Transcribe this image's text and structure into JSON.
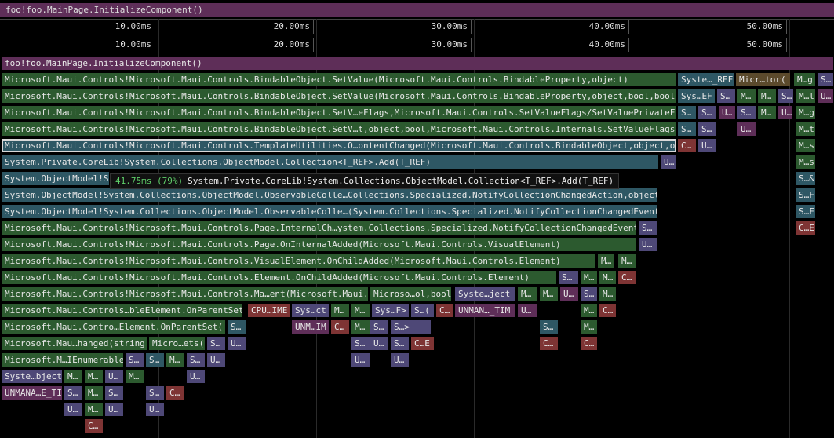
{
  "breadcrumb": "foo!foo.MainPage.InitializeComponent()",
  "ruler_ticks": [
    "10.00ms",
    "20.00ms",
    "30.00ms",
    "40.00ms",
    "50.00ms"
  ],
  "tooltip": {
    "percent": "41.75ms (79%)",
    "name": "System.Private.CoreLib!System.Collections.ObjectModel.Collection<T_REF>.Add(T_REF)"
  },
  "frames": [
    [
      "foo!foo.MainPage.InitializeComponent()",
      "p"
    ],
    [
      "Microsoft.Maui.Controls!Microsoft.Maui.Controls.BindableObject.SetValue(Microsoft.Maui.Controls.BindableProperty,object)",
      "g"
    ],
    [
      "Syste…_REF",
      "t"
    ],
    [
      "Micr…tor(",
      "o"
    ],
    [
      "M…g",
      "g"
    ],
    [
      "S…",
      "v"
    ],
    [
      "Microsoft.Maui.Controls!Microsoft.Maui.Controls.BindableObject.SetValue(Microsoft.Maui.Controls.BindableProperty,object,bool,bool)",
      "g"
    ],
    [
      "Sys…EF",
      "t"
    ],
    [
      "S…",
      "v"
    ],
    [
      "M…",
      "g"
    ],
    [
      "M…",
      "g"
    ],
    [
      "S…",
      "v"
    ],
    [
      "M…l",
      "g"
    ],
    [
      "U…",
      "p"
    ],
    [
      "Microsoft.Maui.Controls!Microsoft.Maui.Controls.BindableObject.SetV…eFlags,Microsoft.Maui.Controls.SetValueFlags/SetValuePrivateFlags",
      "g"
    ],
    [
      "S…",
      "t"
    ],
    [
      "S…",
      "v"
    ],
    [
      "U…",
      "p"
    ],
    [
      "S…",
      "v"
    ],
    [
      "M…",
      "g"
    ],
    [
      "U…",
      "p"
    ],
    [
      "M…g",
      "g"
    ],
    [
      "Microsoft.Maui.Controls!Microsoft.Maui.Controls.BindableObject.SetV…t,object,bool,Microsoft.Maui.Controls.Internals.SetValueFlags,bool",
      "g"
    ],
    [
      "S…",
      "t"
    ],
    [
      "S…",
      "v"
    ],
    [
      "U…",
      "p"
    ],
    [
      "M…t",
      "g"
    ],
    [
      "Microsoft.Maui.Controls!Microsoft.Maui.Controls.TemplateUtilities.O…ontentChanged(Microsoft.Maui.Controls.BindableObject,object,object",
      "g"
    ],
    [
      "C…",
      "r"
    ],
    [
      "U…",
      "v"
    ],
    [
      "M…s",
      "g"
    ],
    [
      "System.Private.CoreLib!System.Collections.ObjectModel.Collection<T_REF>.Add(T_REF)",
      "t"
    ],
    [
      "U…",
      "v"
    ],
    [
      "M…s",
      "g"
    ],
    [
      "System.ObjectModel!Sy",
      "t"
    ],
    [
      "S…&",
      "t"
    ],
    [
      "System.ObjectModel!System.Collections.ObjectModel.ObservableColle…Collections.Specialized.NotifyCollectionChangedAction,object,int",
      "t"
    ],
    [
      "S…F",
      "t"
    ],
    [
      "System.ObjectModel!System.Collections.ObjectModel.ObservableColle…(System.Collections.Specialized.NotifyCollectionChangedEventArgs",
      "t"
    ],
    [
      "S…F",
      "t"
    ],
    [
      "Microsoft.Maui.Controls!Microsoft.Maui.Controls.Page.InternalCh…ystem.Collections.Specialized.NotifyCollectionChangedEventArgs",
      "g"
    ],
    [
      "S…",
      "v"
    ],
    [
      "C…E",
      "r"
    ],
    [
      "Microsoft.Maui.Controls!Microsoft.Maui.Controls.Page.OnInternalAdded(Microsoft.Maui.Controls.VisualElement)",
      "g"
    ],
    [
      "U…",
      "v"
    ],
    [
      "Microsoft.Maui.Controls!Microsoft.Maui.Controls.VisualElement.OnChildAdded(Microsoft.Maui.Controls.Element)",
      "g"
    ],
    [
      "M…",
      "g"
    ],
    [
      "M…",
      "g"
    ],
    [
      "Microsoft.Maui.Controls!Microsoft.Maui.Controls.Element.OnChildAdded(Microsoft.Maui.Controls.Element)",
      "g"
    ],
    [
      "S…",
      "v"
    ],
    [
      "M…",
      "g"
    ],
    [
      "M…",
      "g"
    ],
    [
      "C…",
      "r"
    ],
    [
      "Microsoft.Maui.Controls!Microsoft.Maui.Controls.Ma…ent(Microsoft.Maui.Controls.Element",
      "g"
    ],
    [
      "Microso…ol,bool",
      "g"
    ],
    [
      "Syste…ject",
      "v"
    ],
    [
      "M…",
      "g"
    ],
    [
      "M…",
      "g"
    ],
    [
      "U…",
      "p"
    ],
    [
      "S…",
      "v"
    ],
    [
      "M…",
      "g"
    ],
    [
      "Microsoft.Maui.Controls…bleElement.OnParentSet(",
      "g"
    ],
    [
      "CPU…IME",
      "r"
    ],
    [
      "Sys…ct",
      "v"
    ],
    [
      "M…",
      "g"
    ],
    [
      "M…",
      "g"
    ],
    [
      "Sys…F>",
      "v"
    ],
    [
      "S…(",
      "v"
    ],
    [
      "C…",
      "r"
    ],
    [
      "UNMAN…_TIM",
      "p"
    ],
    [
      "U…",
      "p"
    ],
    [
      "M…",
      "g"
    ],
    [
      "C…",
      "r"
    ],
    [
      "Microsoft.Maui.Contro…Element.OnParentSet(",
      "g"
    ],
    [
      "S…",
      "t"
    ],
    [
      "UNM…IM",
      "p"
    ],
    [
      "C…",
      "r"
    ],
    [
      "M…",
      "g"
    ],
    [
      "S…",
      "v"
    ],
    [
      "S…>",
      "v"
    ],
    [
      "S…",
      "t"
    ],
    [
      "M…",
      "g"
    ],
    [
      "Microsoft.Mau…hanged(string",
      "g"
    ],
    [
      "Micro…ets(",
      "g"
    ],
    [
      "S…",
      "v"
    ],
    [
      "U…",
      "v"
    ],
    [
      "S…",
      "v"
    ],
    [
      "U…",
      "v"
    ],
    [
      "S…",
      "v"
    ],
    [
      "C…E",
      "r"
    ],
    [
      "C…",
      "r"
    ],
    [
      "C…",
      "r"
    ],
    [
      "Microsoft.M…IEnumerable",
      "g"
    ],
    [
      "S…",
      "v"
    ],
    [
      "S…",
      "t"
    ],
    [
      "M…",
      "g"
    ],
    [
      "S…",
      "v"
    ],
    [
      "U…",
      "v"
    ],
    [
      "U…",
      "v"
    ],
    [
      "U…",
      "v"
    ],
    [
      "Syste…bject",
      "v"
    ],
    [
      "M…",
      "g"
    ],
    [
      "M…",
      "g"
    ],
    [
      "U…",
      "v"
    ],
    [
      "M…",
      "g"
    ],
    [
      "U…",
      "v"
    ],
    [
      "UNMANA…E_TIM",
      "p"
    ],
    [
      "S…",
      "v"
    ],
    [
      "M…",
      "g"
    ],
    [
      "S…",
      "v"
    ],
    [
      "S…",
      "v"
    ],
    [
      "C…",
      "r"
    ],
    [
      "U…",
      "v"
    ],
    [
      "M…",
      "g"
    ],
    [
      "U…",
      "v"
    ],
    [
      "U…",
      "v"
    ],
    [
      "C…",
      "r"
    ]
  ]
}
